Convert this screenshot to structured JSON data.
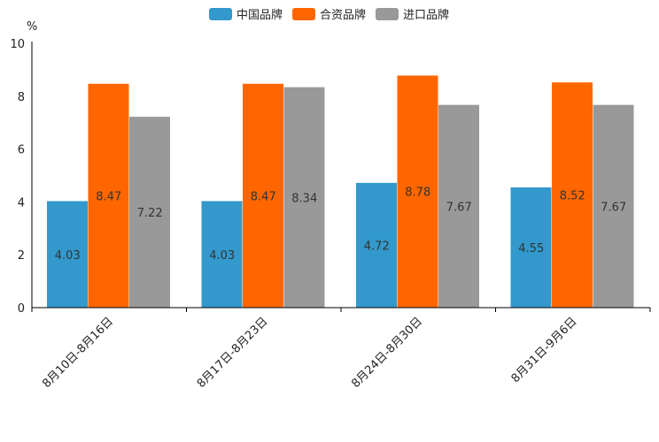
{
  "chart_data": {
    "type": "bar",
    "title": "",
    "unit_label": "%",
    "xlabel": "",
    "ylabel": "%",
    "ylim": [
      0,
      10
    ],
    "y_ticks": [
      0,
      2,
      4,
      6,
      8,
      10
    ],
    "grid": false,
    "legend_position": "top-center",
    "categories": [
      "8月10日-8月16日",
      "8月17日-8月23日",
      "8月24日-8月30日",
      "8月31日-9月6日"
    ],
    "series": [
      {
        "name": "中国品牌",
        "color": "#3399cc",
        "values": [
          4.03,
          4.03,
          4.72,
          4.55
        ]
      },
      {
        "name": "合资品牌",
        "color": "#ff6600",
        "values": [
          8.47,
          8.47,
          8.78,
          8.52
        ]
      },
      {
        "name": "进口品牌",
        "color": "#999999",
        "values": [
          7.22,
          8.34,
          7.67,
          7.67
        ]
      }
    ]
  }
}
